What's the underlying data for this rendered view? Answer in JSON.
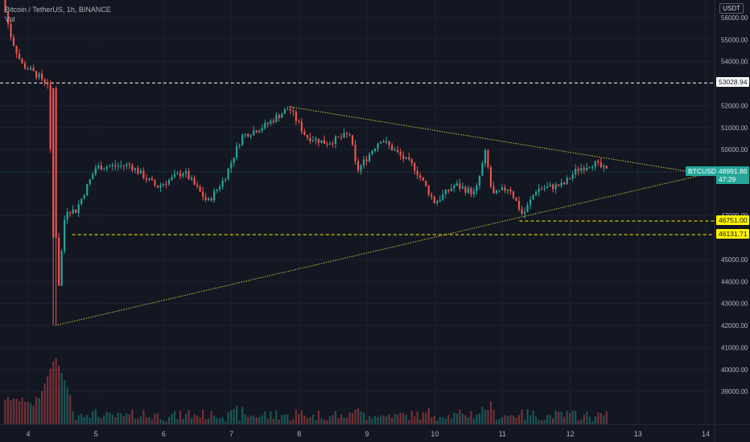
{
  "legend": {
    "symbol_line": "Bitcoin / TetherUS, 1h, BINANCE",
    "volume_label": "Vol"
  },
  "price_axis": {
    "currency": "USDT",
    "ticks": [
      "56000.00",
      "55000.00",
      "54000.00",
      "52000.00",
      "51000.00",
      "50000.00",
      "47000.00",
      "45000.00",
      "44000.00",
      "43000.00",
      "42000.00",
      "41000.00",
      "40000.00",
      "39000.00"
    ]
  },
  "time_axis": {
    "ticks": [
      "4",
      "5",
      "6",
      "7",
      "8",
      "9",
      "10",
      "11",
      "12",
      "13",
      "14"
    ]
  },
  "levels": [
    {
      "value": 53028.94,
      "label": "53028.94",
      "color": "#ffffff",
      "style": "white"
    },
    {
      "value": 46751.0,
      "label": "46751.00",
      "color": "#fff200",
      "style": "yellow"
    },
    {
      "value": 46131.71,
      "label": "46131.71",
      "color": "#fff200",
      "style": "yellow"
    }
  ],
  "current_price": {
    "symbol": "BTCUSDT",
    "price": "48991.86",
    "countdown": "47:29",
    "value": 48991.86,
    "color": "#26a69a"
  },
  "colors": {
    "up": "#26a69a",
    "down": "#ef5350",
    "trendline": "#c9c33b",
    "background": "#131722",
    "grid": "#1e2230",
    "axis_text": "#b2b5be"
  },
  "chart_data": {
    "type": "candlestick",
    "symbol": "Bitcoin / TetherUS",
    "interval": "1h",
    "exchange": "BINANCE",
    "ylim": [
      38500,
      56800
    ],
    "x_range_days": [
      3.6,
      14.1
    ],
    "key_points": [
      {
        "day": 3.62,
        "price": 56800
      },
      {
        "day": 3.75,
        "price": 55100
      },
      {
        "day": 3.9,
        "price": 53900
      },
      {
        "day": 4.3,
        "price": 53000
      },
      {
        "day": 4.4,
        "price": 42000
      },
      {
        "day": 4.55,
        "price": 47300
      },
      {
        "day": 4.7,
        "price": 47200
      },
      {
        "day": 5.0,
        "price": 49200
      },
      {
        "day": 5.5,
        "price": 49300
      },
      {
        "day": 5.9,
        "price": 48300
      },
      {
        "day": 6.3,
        "price": 49000
      },
      {
        "day": 6.65,
        "price": 47600
      },
      {
        "day": 6.9,
        "price": 48700
      },
      {
        "day": 7.15,
        "price": 50600
      },
      {
        "day": 7.5,
        "price": 51100
      },
      {
        "day": 7.85,
        "price": 51900
      },
      {
        "day": 8.1,
        "price": 50600
      },
      {
        "day": 8.4,
        "price": 50300
      },
      {
        "day": 8.75,
        "price": 50700
      },
      {
        "day": 8.85,
        "price": 49000
      },
      {
        "day": 9.2,
        "price": 50500
      },
      {
        "day": 9.5,
        "price": 49700
      },
      {
        "day": 9.7,
        "price": 49200
      },
      {
        "day": 10.0,
        "price": 47600
      },
      {
        "day": 10.3,
        "price": 48400
      },
      {
        "day": 10.6,
        "price": 48000
      },
      {
        "day": 10.75,
        "price": 49900
      },
      {
        "day": 10.85,
        "price": 47900
      },
      {
        "day": 11.1,
        "price": 48300
      },
      {
        "day": 11.3,
        "price": 47000
      },
      {
        "day": 11.5,
        "price": 48200
      },
      {
        "day": 11.9,
        "price": 48400
      },
      {
        "day": 12.1,
        "price": 49100
      },
      {
        "day": 12.35,
        "price": 49400
      },
      {
        "day": 12.55,
        "price": 49000
      }
    ],
    "trendlines": [
      {
        "name": "upper",
        "from": {
          "day": 7.85,
          "price": 51950
        },
        "to": {
          "day": 13.95,
          "price": 48900
        }
      },
      {
        "name": "lower",
        "from": {
          "day": 4.4,
          "price": 42000
        },
        "to": {
          "day": 13.95,
          "price": 48850
        }
      }
    ],
    "volume_spike_day": 4.4
  }
}
